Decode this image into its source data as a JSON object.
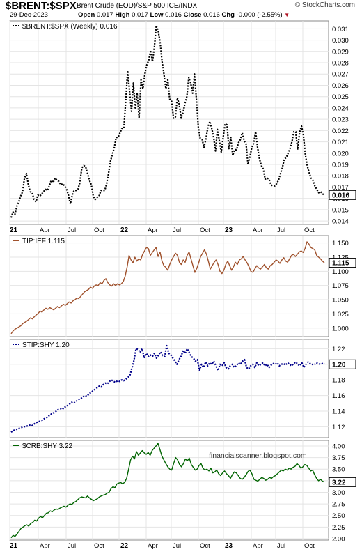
{
  "header": {
    "symbol": "$BRENT:$SPX",
    "description": "Brent Crude (EOD)/S&P 500 ICE/INDX",
    "date": "29-Dec-2023",
    "open_label": "Open",
    "open": "0.017",
    "high_label": "High",
    "high": "0.017",
    "low_label": "Low",
    "low": "0.016",
    "close_label": "Close",
    "close": "0.016",
    "chg_label": "Chg",
    "chg": "-0.000 (-2.55%)",
    "brand": "© StockCharts.com"
  },
  "watermark": "financialscanner.blogspot.com",
  "colors": {
    "brent_spx": "#000000",
    "tip_ief": "#a0522d",
    "stip_shy": "#00008b",
    "crb_shy": "#006400"
  },
  "chart_data": [
    {
      "type": "line",
      "legend": "$BRENT:$SPX (Weekly) 0.016",
      "last_value_label": "0.016",
      "line_style": "dotted",
      "x_tick_labels": [
        "21",
        "Apr",
        "Jul",
        "Oct",
        "22",
        "Apr",
        "Jul",
        "Oct",
        "23",
        "Apr",
        "Jul",
        "Oct"
      ],
      "ylim": [
        0.0137,
        0.0317
      ],
      "y_ticks": [
        "0.014",
        "0.015",
        "0.016",
        "0.017",
        "0.018",
        "0.019",
        "0.020",
        "0.021",
        "0.022",
        "0.023",
        "0.024",
        "0.025",
        "0.026",
        "0.027",
        "0.028",
        "0.029",
        "0.030",
        "0.031"
      ],
      "y_ticks_numeric": [
        0.014,
        0.015,
        0.016,
        0.017,
        0.018,
        0.019,
        0.02,
        0.021,
        0.022,
        0.023,
        0.024,
        0.025,
        0.026,
        0.027,
        0.028,
        0.029,
        0.03,
        0.031
      ],
      "values": [
        0.0143,
        0.0148,
        0.0146,
        0.0153,
        0.0157,
        0.0162,
        0.0166,
        0.0178,
        0.0182,
        0.0172,
        0.0166,
        0.0165,
        0.0159,
        0.0157,
        0.0163,
        0.0162,
        0.0164,
        0.0166,
        0.0168,
        0.0167,
        0.0171,
        0.0176,
        0.0174,
        0.0178,
        0.0176,
        0.0175,
        0.0172,
        0.0173,
        0.0171,
        0.0168,
        0.0163,
        0.0155,
        0.0163,
        0.0167,
        0.0167,
        0.0168,
        0.0174,
        0.0187,
        0.0189,
        0.0188,
        0.0182,
        0.0176,
        0.0172,
        0.0162,
        0.0159,
        0.0161,
        0.0162,
        0.0167,
        0.0167,
        0.0167,
        0.0173,
        0.0182,
        0.0193,
        0.0199,
        0.0205,
        0.0214,
        0.0214,
        0.0218,
        0.0222,
        0.0222,
        0.0246,
        0.0273,
        0.0255,
        0.0237,
        0.0262,
        0.0239,
        0.0253,
        0.0231,
        0.0265,
        0.0257,
        0.027,
        0.0278,
        0.0282,
        0.0291,
        0.0281,
        0.0294,
        0.0313,
        0.0308,
        0.0298,
        0.0281,
        0.027,
        0.0257,
        0.0265,
        0.0248,
        0.0246,
        0.0231,
        0.0232,
        0.0249,
        0.0243,
        0.0231,
        0.0236,
        0.0244,
        0.025,
        0.0267,
        0.0262,
        0.0253,
        0.027,
        0.0247,
        0.0223,
        0.0213,
        0.0212,
        0.0205,
        0.0213,
        0.0223,
        0.0228,
        0.0222,
        0.0214,
        0.0202,
        0.0221,
        0.0211,
        0.0201,
        0.0214,
        0.0226,
        0.0225,
        0.0204,
        0.0214,
        0.0198,
        0.0203,
        0.0203,
        0.0209,
        0.0212,
        0.0218,
        0.0211,
        0.0208,
        0.019,
        0.0197,
        0.0205,
        0.0209,
        0.0219,
        0.0205,
        0.0195,
        0.0189,
        0.0186,
        0.0177,
        0.0178,
        0.0177,
        0.0172,
        0.0171,
        0.0171,
        0.0173,
        0.0176,
        0.0182,
        0.0187,
        0.0195,
        0.0196,
        0.02,
        0.0204,
        0.021,
        0.0219,
        0.0219,
        0.0203,
        0.0218,
        0.0224,
        0.0216,
        0.0199,
        0.0189,
        0.0183,
        0.0178,
        0.0176,
        0.0171,
        0.0168,
        0.0165,
        0.0166,
        0.0164,
        0.0163
      ]
    },
    {
      "type": "line",
      "legend": "TIP:IEF 1.115",
      "last_value_label": "1.115",
      "line_style": "solid",
      "x_tick_labels": [],
      "ylim": [
        0.985,
        1.163
      ],
      "y_ticks": [
        "1.000",
        "1.025",
        "1.050",
        "1.075",
        "1.100",
        "1.125",
        "1.150"
      ],
      "y_ticks_numeric": [
        1.0,
        1.025,
        1.05,
        1.075,
        1.1,
        1.125,
        1.15
      ],
      "values": [
        0.99,
        0.995,
        0.998,
        1.0,
        1.002,
        1.004,
        1.008,
        1.01,
        1.012,
        1.015,
        1.018,
        1.016,
        1.02,
        1.023,
        1.026,
        1.03,
        1.028,
        1.032,
        1.035,
        1.033,
        1.036,
        1.034,
        1.032,
        1.035,
        1.038,
        1.036,
        1.039,
        1.042,
        1.04,
        1.043,
        1.046,
        1.044,
        1.048,
        1.05,
        1.053,
        1.052,
        1.056,
        1.06,
        1.064,
        1.066,
        1.068,
        1.072,
        1.07,
        1.074,
        1.076,
        1.075,
        1.08,
        1.078,
        1.084,
        1.087,
        1.08,
        1.076,
        1.074,
        1.078,
        1.075,
        1.078,
        1.076,
        1.078,
        1.082,
        1.092,
        1.108,
        1.128,
        1.12,
        1.115,
        1.125,
        1.118,
        1.122,
        1.12,
        1.13,
        1.136,
        1.142,
        1.14,
        1.128,
        1.133,
        1.138,
        1.142,
        1.126,
        1.134,
        1.118,
        1.11,
        1.107,
        1.102,
        1.112,
        1.12,
        1.126,
        1.132,
        1.128,
        1.116,
        1.112,
        1.12,
        1.116,
        1.128,
        1.134,
        1.122,
        1.11,
        1.098,
        1.105,
        1.115,
        1.126,
        1.132,
        1.138,
        1.13,
        1.118,
        1.104,
        1.11,
        1.116,
        1.12,
        1.112,
        1.1,
        1.096,
        1.102,
        1.112,
        1.118,
        1.11,
        1.102,
        1.108,
        1.116,
        1.112,
        1.12,
        1.122,
        1.126,
        1.12,
        1.115,
        1.108,
        1.1,
        1.098,
        1.104,
        1.11,
        1.106,
        1.104,
        1.108,
        1.112,
        1.106,
        1.104,
        1.11,
        1.112,
        1.116,
        1.12,
        1.118,
        1.114,
        1.12,
        1.124,
        1.118,
        1.116,
        1.122,
        1.128,
        1.13,
        1.126,
        1.13,
        1.134,
        1.136,
        1.133,
        1.14,
        1.152,
        1.148,
        1.142,
        1.14,
        1.138,
        1.128,
        1.125,
        1.122,
        1.118,
        1.115
      ]
    },
    {
      "type": "line",
      "legend": "STIP:SHY 1.20",
      "last_value_label": "1.20",
      "line_style": "dotted",
      "x_tick_labels": [],
      "ylim": [
        1.106,
        1.232
      ],
      "y_ticks": [
        "1.12",
        "1.14",
        "1.16",
        "1.18",
        "1.20",
        "1.22"
      ],
      "y_ticks_numeric": [
        1.12,
        1.14,
        1.16,
        1.18,
        1.2,
        1.22
      ],
      "values": [
        1.113,
        1.115,
        1.116,
        1.117,
        1.118,
        1.119,
        1.12,
        1.12,
        1.121,
        1.122,
        1.121,
        1.123,
        1.125,
        1.126,
        1.127,
        1.128,
        1.13,
        1.131,
        1.133,
        1.135,
        1.137,
        1.138,
        1.14,
        1.142,
        1.143,
        1.142,
        1.145,
        1.146,
        1.148,
        1.15,
        1.152,
        1.151,
        1.153,
        1.155,
        1.156,
        1.158,
        1.16,
        1.159,
        1.162,
        1.164,
        1.166,
        1.168,
        1.17,
        1.172,
        1.171,
        1.174,
        1.176,
        1.175,
        1.178,
        1.18,
        1.178,
        1.177,
        1.179,
        1.178,
        1.18,
        1.179,
        1.181,
        1.183,
        1.186,
        1.195,
        1.205,
        1.22,
        1.219,
        1.215,
        1.22,
        1.208,
        1.214,
        1.21,
        1.212,
        1.21,
        1.214,
        1.208,
        1.212,
        1.216,
        1.211,
        1.21,
        1.224,
        1.214,
        1.212,
        1.208,
        1.204,
        1.2,
        1.206,
        1.21,
        1.218,
        1.214,
        1.22,
        1.215,
        1.21,
        1.208,
        1.204,
        1.206,
        1.192,
        1.2,
        1.196,
        1.203,
        1.198,
        1.202,
        1.2,
        1.204,
        1.198,
        1.192,
        1.2,
        1.198,
        1.202,
        1.196,
        1.194,
        1.198,
        1.2,
        1.196,
        1.198,
        1.202,
        1.2,
        1.204,
        1.206,
        1.196,
        1.194,
        1.198,
        1.2,
        1.196,
        1.202,
        1.198,
        1.2,
        1.202,
        1.198,
        1.2,
        1.196,
        1.199,
        1.201,
        1.2,
        1.202,
        1.198,
        1.2,
        1.201,
        1.199,
        1.202,
        1.2,
        1.198,
        1.201,
        1.203,
        1.2,
        1.198,
        1.202,
        1.196,
        1.2,
        1.203,
        1.201,
        1.2,
        1.199,
        1.202,
        1.201,
        1.2,
        1.201,
        1.2
      ]
    },
    {
      "type": "line",
      "legend": "$CRB:SHY 3.22",
      "last_value_label": "3.22",
      "line_style": "solid",
      "x_tick_labels": [
        "21",
        "Apr",
        "Jul",
        "Oct",
        "22",
        "Apr",
        "Jul",
        "Oct",
        "23",
        "Apr",
        "Jul",
        "Oct"
      ],
      "ylim": [
        1.97,
        4.12
      ],
      "y_ticks": [
        "2.00",
        "2.25",
        "2.50",
        "2.75",
        "3.00",
        "3.25",
        "3.50",
        "3.75",
        "4.00"
      ],
      "y_ticks_numeric": [
        2.0,
        2.25,
        2.5,
        2.75,
        3.0,
        3.25,
        3.5,
        3.75,
        4.0
      ],
      "values": [
        2.02,
        2.07,
        2.05,
        2.1,
        2.16,
        2.22,
        2.25,
        2.28,
        2.3,
        2.27,
        2.33,
        2.35,
        2.4,
        2.38,
        2.44,
        2.48,
        2.45,
        2.5,
        2.55,
        2.56,
        2.6,
        2.58,
        2.62,
        2.64,
        2.63,
        2.66,
        2.68,
        2.7,
        2.68,
        2.72,
        2.75,
        2.74,
        2.78,
        2.8,
        2.84,
        2.88,
        2.9,
        2.89,
        2.88,
        2.92,
        2.88,
        2.85,
        2.82,
        2.84,
        2.86,
        2.9,
        2.92,
        2.94,
        2.95,
        2.98,
        3.0,
        3.08,
        3.12,
        3.1,
        3.18,
        3.2,
        3.21,
        3.18,
        3.22,
        3.3,
        3.5,
        3.7,
        3.78,
        3.72,
        3.88,
        3.8,
        3.85,
        3.9,
        3.85,
        3.82,
        3.86,
        3.8,
        3.9,
        3.95,
        4.0,
        4.06,
        3.92,
        3.78,
        3.7,
        3.62,
        3.55,
        3.5,
        3.48,
        3.62,
        3.75,
        3.7,
        3.6,
        3.55,
        3.62,
        3.72,
        3.68,
        3.74,
        3.6,
        3.54,
        3.48,
        3.5,
        3.58,
        3.62,
        3.52,
        3.48,
        3.5,
        3.46,
        3.52,
        3.42,
        3.44,
        3.48,
        3.4,
        3.36,
        3.42,
        3.46,
        3.4,
        3.36,
        3.3,
        3.38,
        3.44,
        3.42,
        3.36,
        3.3,
        3.28,
        3.32,
        3.38,
        3.45,
        3.48,
        3.4,
        3.28,
        3.26,
        3.24,
        3.28,
        3.32,
        3.3,
        3.26,
        3.28,
        3.32,
        3.3,
        3.34,
        3.36,
        3.4,
        3.44,
        3.48,
        3.46,
        3.5,
        3.48,
        3.52,
        3.5,
        3.54,
        3.56,
        3.62,
        3.58,
        3.52,
        3.55,
        3.6,
        3.58,
        3.52,
        3.46,
        3.48,
        3.38,
        3.3,
        3.25,
        3.28,
        3.24,
        3.22
      ]
    }
  ]
}
